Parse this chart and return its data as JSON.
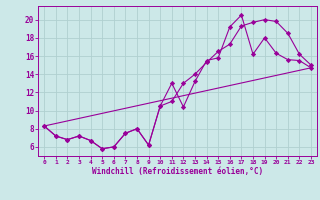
{
  "xlabel": "Windchill (Refroidissement éolien,°C)",
  "background_color": "#cce8e8",
  "grid_color": "#b0d0d0",
  "line_color": "#990099",
  "xlim": [
    -0.5,
    23.5
  ],
  "ylim": [
    5.0,
    21.5
  ],
  "xticks": [
    0,
    1,
    2,
    3,
    4,
    5,
    6,
    7,
    8,
    9,
    10,
    11,
    12,
    13,
    14,
    15,
    16,
    17,
    18,
    19,
    20,
    21,
    22,
    23
  ],
  "yticks": [
    6,
    8,
    10,
    12,
    14,
    16,
    18,
    20
  ],
  "series1_x": [
    0,
    1,
    2,
    3,
    4,
    5,
    6,
    7,
    8,
    9,
    10,
    11,
    12,
    13,
    14,
    15,
    16,
    17,
    18,
    19,
    20,
    21,
    22,
    23
  ],
  "series1_y": [
    8.3,
    7.2,
    6.8,
    7.2,
    6.7,
    5.8,
    6.0,
    7.5,
    8.0,
    6.2,
    10.5,
    13.0,
    10.4,
    13.2,
    15.5,
    15.8,
    19.2,
    20.5,
    16.2,
    18.0,
    16.3,
    15.6,
    15.5,
    14.7
  ],
  "series2_x": [
    0,
    1,
    2,
    3,
    4,
    5,
    6,
    7,
    8,
    9,
    10,
    11,
    12,
    13,
    14,
    15,
    16,
    17,
    18,
    19,
    20,
    21,
    22,
    23
  ],
  "series2_y": [
    8.3,
    7.2,
    6.8,
    7.2,
    6.7,
    5.8,
    6.0,
    7.5,
    8.0,
    6.2,
    10.5,
    11.0,
    13.0,
    14.0,
    15.3,
    16.5,
    17.3,
    19.3,
    19.7,
    20.0,
    19.8,
    18.5,
    16.2,
    15.0
  ],
  "series3_x": [
    0,
    23
  ],
  "series3_y": [
    8.3,
    14.7
  ]
}
